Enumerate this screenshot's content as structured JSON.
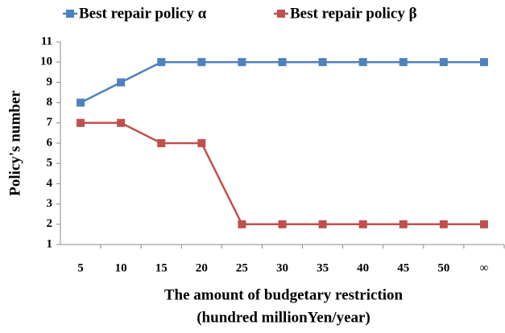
{
  "chart_data": {
    "type": "line",
    "xlabel": [
      "The amount of budgetary restriction",
      "(hundred millionYen/year)"
    ],
    "ylabel": "Policy's number",
    "categories": [
      "5",
      "10",
      "15",
      "20",
      "25",
      "30",
      "35",
      "40",
      "45",
      "50",
      "∞"
    ],
    "series": [
      {
        "name": "Best repair policy α",
        "color": "#4f81bd",
        "values": [
          8,
          9,
          10,
          10,
          10,
          10,
          10,
          10,
          10,
          10,
          10
        ]
      },
      {
        "name": "Best repair policy β",
        "color": "#c0504d",
        "values": [
          7,
          7,
          6,
          6,
          2,
          2,
          2,
          2,
          2,
          2,
          2
        ]
      }
    ],
    "ylim": [
      1,
      11
    ],
    "yticks": [
      1,
      2,
      3,
      4,
      5,
      6,
      7,
      8,
      9,
      10,
      11
    ],
    "grid": false,
    "legend": "top"
  }
}
